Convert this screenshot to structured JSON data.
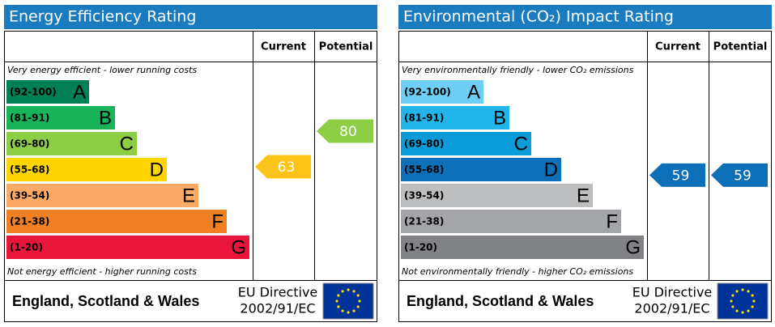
{
  "panels": [
    {
      "title": "Energy Efficiency Rating",
      "current_header": "Current",
      "potential_header": "Potential",
      "top_note": "Very energy efficient - lower running costs",
      "bottom_note": "Not energy efficient - higher running costs",
      "bands": [
        {
          "range": "(92-100)",
          "letter": "A",
          "color": "#008054"
        },
        {
          "range": "(81-91)",
          "letter": "B",
          "color": "#19b459"
        },
        {
          "range": "(69-80)",
          "letter": "C",
          "color": "#8dce46"
        },
        {
          "range": "(55-68)",
          "letter": "D",
          "color": "#ffd500"
        },
        {
          "range": "(39-54)",
          "letter": "E",
          "color": "#fcaa65"
        },
        {
          "range": "(21-38)",
          "letter": "F",
          "color": "#ef8023"
        },
        {
          "range": "(1-20)",
          "letter": "G",
          "color": "#e9153b"
        }
      ],
      "current": 63,
      "current_color": "#fcc419",
      "potential": 80,
      "potential_color": "#8dce46",
      "region": "England, Scotland & Wales",
      "directive": [
        "EU Directive",
        "2002/91/EC"
      ]
    },
    {
      "title": "Environmental (CO₂) Impact Rating",
      "current_header": "Current",
      "potential_header": "Potential",
      "top_note": "Very environmentally friendly - lower CO₂ emissions",
      "bottom_note": "Not environmentally friendly - higher CO₂ emissions",
      "bands": [
        {
          "range": "(92-100)",
          "letter": "A",
          "color": "#6dcff6"
        },
        {
          "range": "(81-91)",
          "letter": "B",
          "color": "#22b5ec"
        },
        {
          "range": "(69-80)",
          "letter": "C",
          "color": "#0b9bd8"
        },
        {
          "range": "(55-68)",
          "letter": "D",
          "color": "#0c6fb8"
        },
        {
          "range": "(39-54)",
          "letter": "E",
          "color": "#bbbdbf"
        },
        {
          "range": "(21-38)",
          "letter": "F",
          "color": "#a3a5a8"
        },
        {
          "range": "(1-20)",
          "letter": "G",
          "color": "#808285"
        }
      ],
      "current": 59,
      "current_color": "#0c6fb8",
      "potential": 59,
      "potential_color": "#0c6fb8",
      "region": "England, Scotland & Wales",
      "directive": [
        "EU Directive",
        "2002/91/EC"
      ]
    }
  ]
}
